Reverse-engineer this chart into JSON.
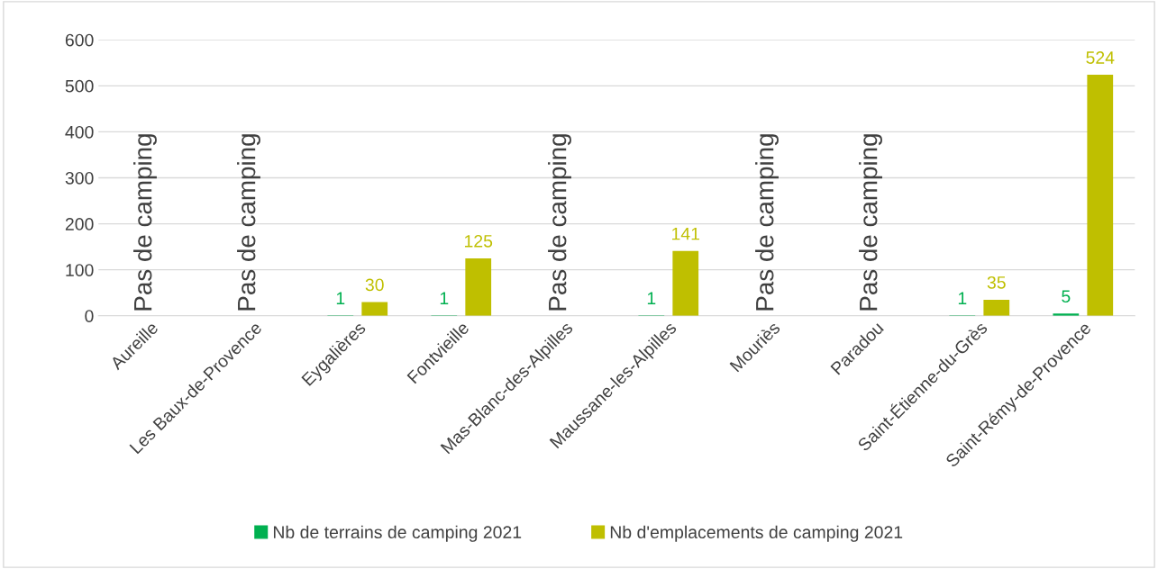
{
  "chart_data": {
    "type": "bar",
    "categories": [
      "Aureille",
      "Les Baux-de-Provence",
      "Eygalières",
      "Fontvieille",
      "Mas-Blanc-des-Alpilles",
      "Maussane-les-Alpilles",
      "Mouriès",
      "Paradou",
      "Saint-Étienne-du-Grès",
      "Saint-Rémy-de-Provence"
    ],
    "series": [
      {
        "name": "Nb de terrains de camping 2021",
        "color": "#00b050",
        "values": [
          null,
          null,
          1,
          1,
          null,
          1,
          null,
          null,
          1,
          5
        ]
      },
      {
        "name": "Nb d'emplacements de camping 2021",
        "color": "#bfbf00",
        "values": [
          null,
          null,
          30,
          125,
          null,
          141,
          null,
          null,
          35,
          524
        ]
      }
    ],
    "ylim": [
      0,
      600
    ],
    "yticks": [
      0,
      100,
      200,
      300,
      400,
      500,
      600
    ],
    "grid": "y",
    "legend": "bottom",
    "data_labels": true,
    "annotations": [
      "Pas de camping",
      "Pas de camping",
      "Pas de camping",
      "Pas de camping",
      "Pas de camping"
    ]
  }
}
